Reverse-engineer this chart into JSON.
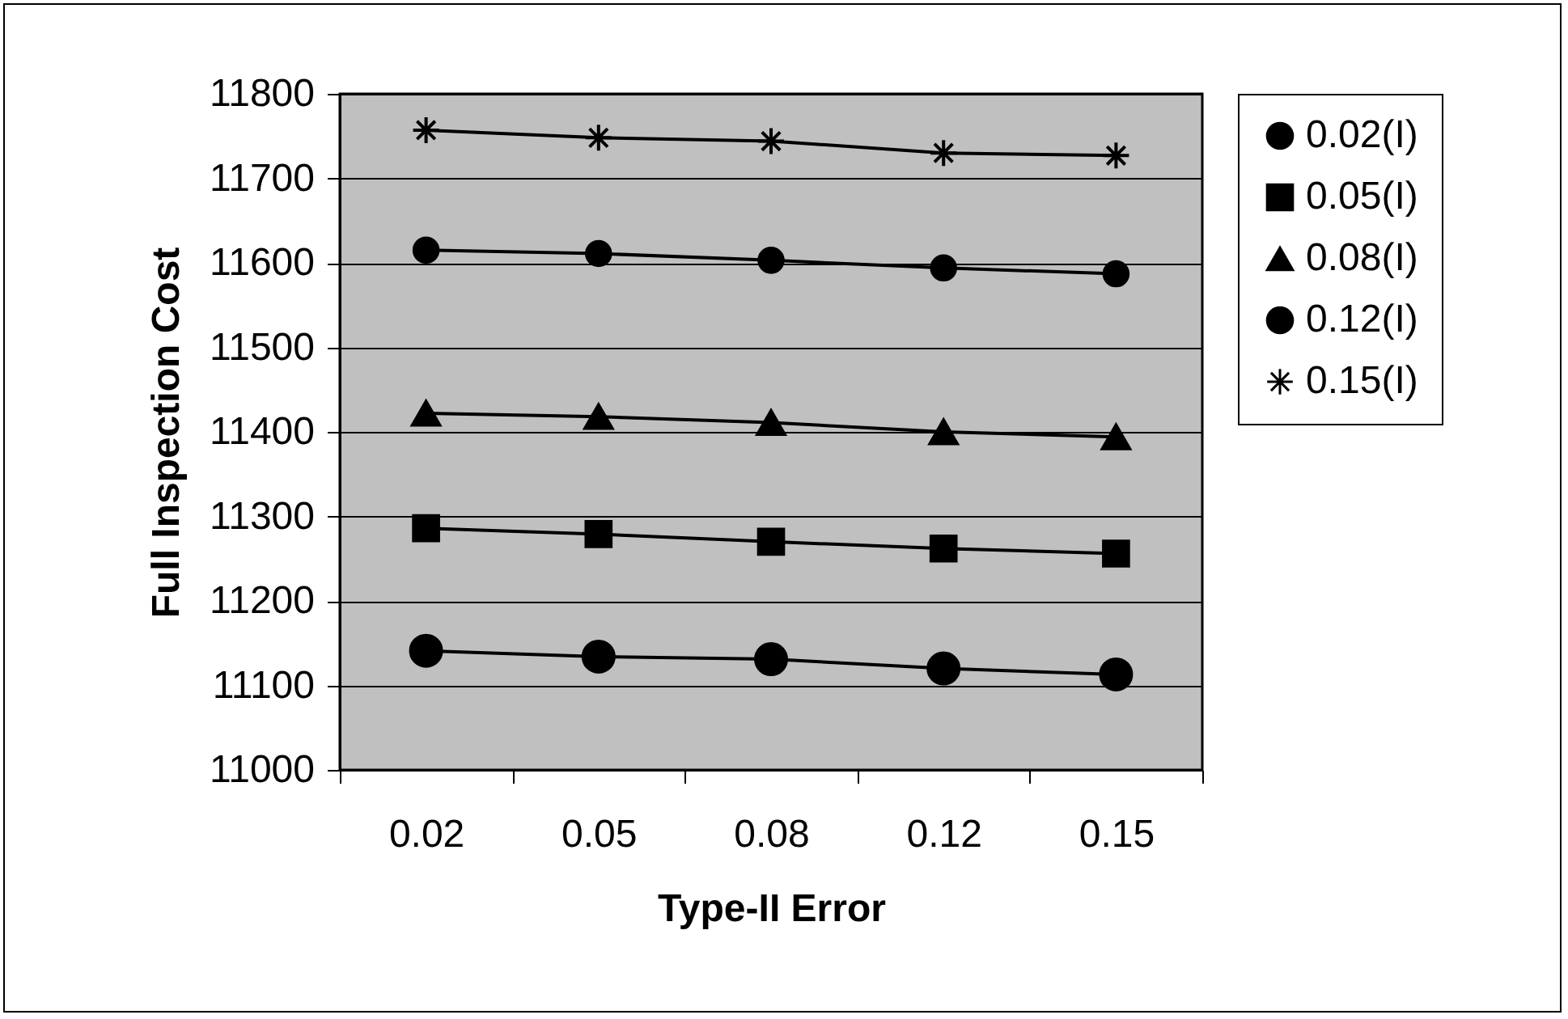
{
  "chart_data": {
    "type": "line",
    "xlabel": "Type-II Error",
    "ylabel": "Full Inspection Cost",
    "categories": [
      "0.02",
      "0.05",
      "0.08",
      "0.12",
      "0.15"
    ],
    "series": [
      {
        "name": "0.02(I)",
        "color": "#000000",
        "marker": "circle",
        "values": [
          11141,
          11134,
          11131,
          11120,
          11113
        ]
      },
      {
        "name": "0.05(I)",
        "color": "#000000",
        "marker": "square",
        "values": [
          11286,
          11279,
          11270,
          11262,
          11256
        ]
      },
      {
        "name": "0.08(I)",
        "color": "#000000",
        "marker": "triangle",
        "values": [
          11422,
          11418,
          11411,
          11400,
          11394
        ]
      },
      {
        "name": "0.12(I)",
        "color": "#000000",
        "marker": "circle",
        "values": [
          11615,
          11611,
          11603,
          11594,
          11587
        ]
      },
      {
        "name": "0.15(I)",
        "color": "#000000",
        "marker": "cross",
        "values": [
          11757,
          11748,
          11744,
          11730,
          11727
        ]
      }
    ],
    "ylim": [
      11000,
      11800
    ],
    "yticks": [
      11000,
      11100,
      11200,
      11300,
      11400,
      11500,
      11600,
      11700,
      11800
    ],
    "grid": "y",
    "legend": "right",
    "line_style": "solid"
  }
}
